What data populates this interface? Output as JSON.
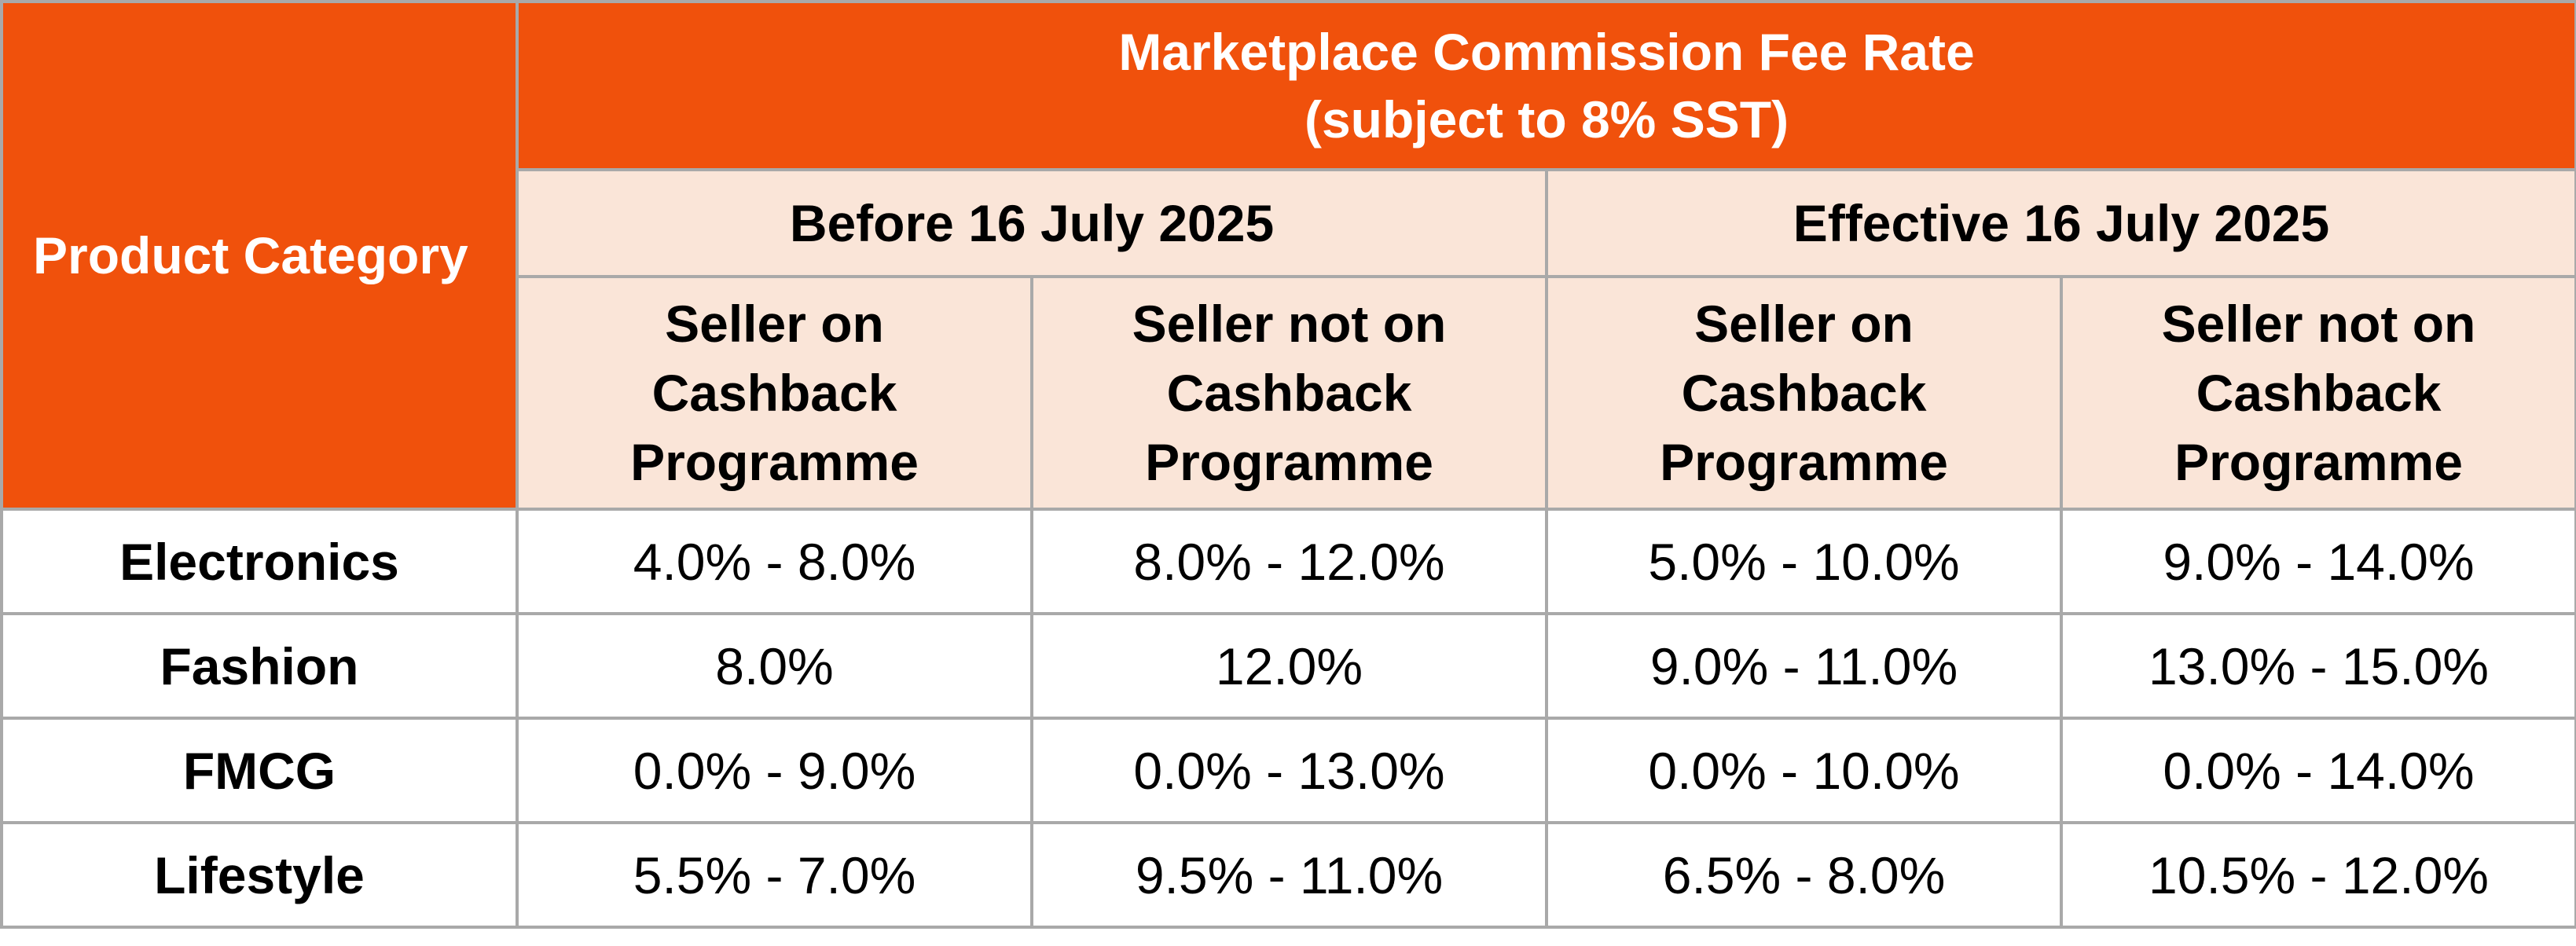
{
  "header": {
    "category_label": "Product Category",
    "title_line1": "Marketplace Commission Fee Rate",
    "title_line2": "(subject to 8% SST)",
    "periods": [
      {
        "label": "Before 16 July 2025"
      },
      {
        "label": "Effective 16 July 2025"
      }
    ],
    "subheaders": [
      {
        "line1": "Seller on",
        "line2": "Cashback",
        "line3": "Programme"
      },
      {
        "line1": "Seller not on",
        "line2": "Cashback",
        "line3": "Programme"
      },
      {
        "line1": "Seller on",
        "line2": "Cashback",
        "line3": "Programme"
      },
      {
        "line1": "Seller not on",
        "line2": "Cashback",
        "line3": "Programme"
      }
    ]
  },
  "rows": [
    {
      "category": "Electronics",
      "rates": [
        "4.0% - 8.0%",
        "8.0% - 12.0%",
        "5.0% - 10.0%",
        "9.0% - 14.0%"
      ]
    },
    {
      "category": "Fashion",
      "rates": [
        "8.0%",
        "12.0%",
        "9.0% - 11.0%",
        "13.0% - 15.0%"
      ]
    },
    {
      "category": "FMCG",
      "rates": [
        "0.0% - 9.0%",
        "0.0% - 13.0%",
        "0.0% - 10.0%",
        "0.0% - 14.0%"
      ]
    },
    {
      "category": "Lifestyle",
      "rates": [
        "5.5% - 7.0%",
        "9.5% - 11.0%",
        "6.5% - 8.0%",
        "10.5% - 12.0%"
      ]
    }
  ],
  "colors": {
    "header_orange": "#f0510c",
    "header_peach": "#fae5d8",
    "border_gray": "#a9a9a9"
  }
}
